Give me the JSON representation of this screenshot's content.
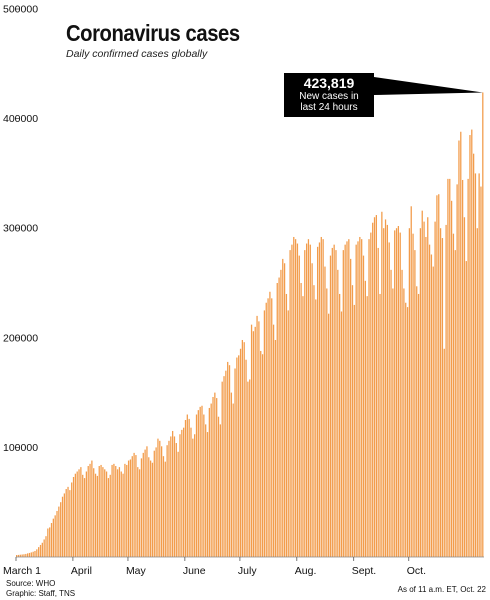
{
  "chart_data": {
    "type": "bar",
    "title": "Coronavirus cases",
    "subtitle": "Daily confirmed cases globally",
    "ylim": [
      0,
      500000
    ],
    "yticks": [
      "500000",
      "400000",
      "300000",
      "200000",
      "100000"
    ],
    "ytick_values": [
      500000,
      400000,
      300000,
      200000,
      100000
    ],
    "xticks": [
      "March 1",
      "April",
      "May",
      "June",
      "July",
      "Aug.",
      "Sept.",
      "Oct."
    ],
    "xtick_day_index": [
      0,
      31,
      61,
      92,
      122,
      153,
      184,
      214
    ],
    "grid": false,
    "bar_color": "#f29c4b",
    "series": [
      {
        "start_date": "March 1",
        "values": [
          1800,
          1900,
          2100,
          2300,
          2500,
          2800,
          3300,
          3700,
          4200,
          4800,
          5500,
          7000,
          9000,
          11000,
          13000,
          16000,
          19000,
          26000,
          27000,
          31000,
          35000,
          38000,
          42000,
          46000,
          50000,
          55000,
          58000,
          62000,
          64000,
          61000,
          68000,
          73000,
          76000,
          78000,
          80000,
          82000,
          75000,
          72000,
          78000,
          83000,
          85000,
          88000,
          81000,
          76000,
          74000,
          83000,
          84000,
          82000,
          80000,
          78000,
          72000,
          75000,
          84000,
          85000,
          83000,
          80000,
          82000,
          78000,
          76000,
          85000,
          84000,
          88000,
          89000,
          92000,
          95000,
          93000,
          82000,
          80000,
          90000,
          95000,
          98000,
          101000,
          91000,
          88000,
          86000,
          97000,
          100000,
          108000,
          106000,
          101000,
          92000,
          87000,
          102000,
          106000,
          110000,
          115000,
          110000,
          104000,
          96000,
          112000,
          116000,
          118000,
          125000,
          130000,
          126000,
          118000,
          108000,
          112000,
          130000,
          134000,
          137000,
          138000,
          130000,
          121000,
          114000,
          136000,
          140000,
          146000,
          150000,
          145000,
          128000,
          121000,
          160000,
          165000,
          170000,
          178000,
          175000,
          150000,
          140000,
          172000,
          182000,
          184000,
          190000,
          198000,
          196000,
          180000,
          160000,
          162000,
          212000,
          206000,
          210000,
          220000,
          215000,
          188000,
          185000,
          225000,
          232000,
          236000,
          242000,
          236000,
          212000,
          198000,
          250000,
          255000,
          262000,
          272000,
          268000,
          240000,
          225000,
          280000,
          285000,
          292000,
          290000,
          286000,
          275000,
          250000,
          238000,
          280000,
          286000,
          290000,
          285000,
          268000,
          248000,
          235000,
          283000,
          287000,
          292000,
          290000,
          265000,
          245000,
          222000,
          275000,
          282000,
          285000,
          280000,
          262000,
          240000,
          224000,
          280000,
          285000,
          288000,
          290000,
          272000,
          248000,
          230000,
          285000,
          288000,
          292000,
          290000,
          275000,
          252000,
          238000,
          290000,
          296000,
          305000,
          310000,
          312000,
          282000,
          240000,
          315000,
          300000,
          308000,
          303000,
          287000,
          262000,
          245000,
          298000,
          300000,
          302000,
          296000,
          262000,
          245000,
          232000,
          228000,
          300000,
          320000,
          295000,
          280000,
          247000,
          240000,
          300000,
          316000,
          306000,
          292000,
          310000,
          285000,
          276000,
          265000,
          306000,
          330000,
          331000,
          300000,
          291000,
          190000,
          303000,
          345000,
          345000,
          325000,
          295000,
          280000,
          340000,
          380000,
          388000,
          344000,
          310000,
          270000,
          345000,
          385000,
          390000,
          368000,
          350000,
          300000,
          350000,
          338000,
          423819
        ]
      }
    ],
    "annotation": {
      "value": "423,819",
      "text_line1": "New cases in",
      "text_line2": "last 24 hours"
    }
  },
  "footer": {
    "source": "Source: WHO",
    "graphic": "Graphic: Staff, TNS",
    "asof": "As of 11 a.m. ET, Oct. 22"
  }
}
